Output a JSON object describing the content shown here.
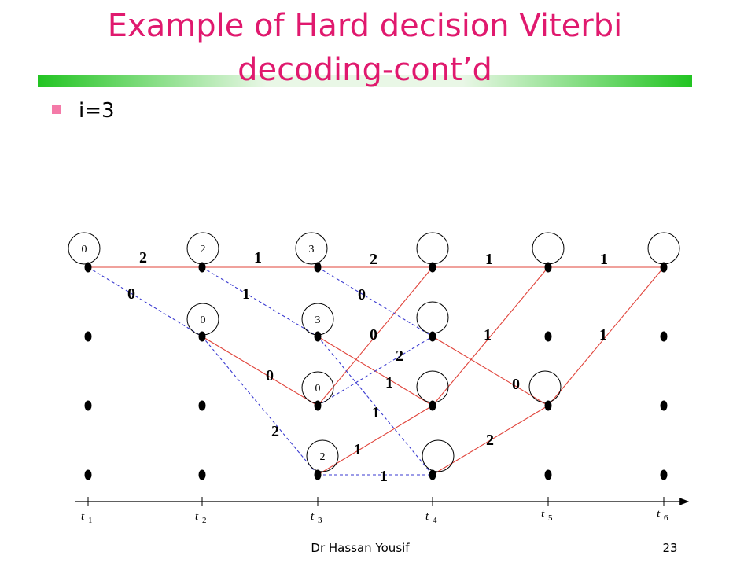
{
  "header": {
    "title_lines": [
      "Example of Hard decision Viterbi",
      "decoding-cont’d"
    ]
  },
  "bullets": [
    "i=3"
  ],
  "trellis": {
    "state_metrics": [
      0,
      2,
      3,
      0,
      3,
      0,
      2
    ],
    "branch_metrics": [
      2,
      1,
      2,
      1,
      1,
      0,
      1,
      0,
      0,
      1,
      1,
      2,
      0,
      1,
      0,
      1,
      2,
      2,
      1,
      1
    ],
    "time_axis": {
      "symbol": "t",
      "subscripts": [
        "1",
        "2",
        "3",
        "4",
        "5",
        "6"
      ]
    }
  },
  "footer": {
    "author": "Dr Hassan Yousif",
    "page": "23"
  }
}
